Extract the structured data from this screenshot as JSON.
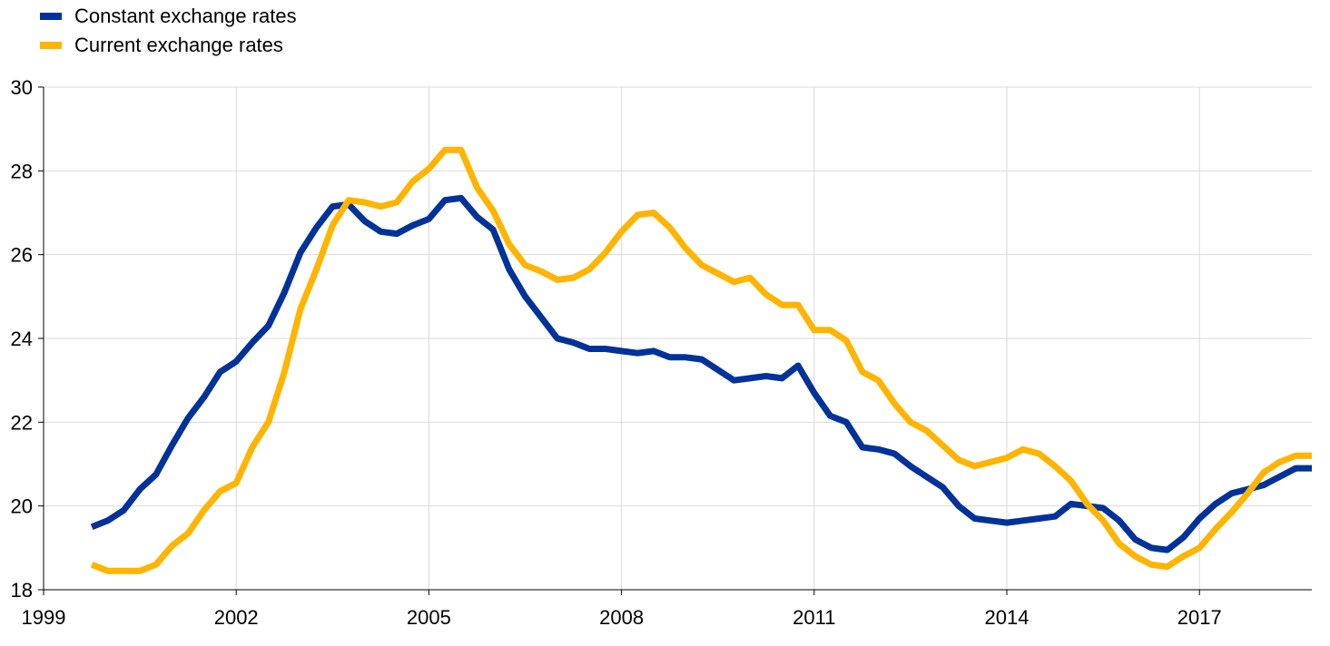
{
  "legend": [
    {
      "label": "Constant exchange rates",
      "color": "#003299"
    },
    {
      "label": "Current exchange rates",
      "color": "#FFB400"
    }
  ],
  "chart_data": {
    "type": "line",
    "title": "",
    "xlabel": "",
    "ylabel": "",
    "xlim": [
      1999,
      2018.75
    ],
    "ylim": [
      18,
      30
    ],
    "x_ticks": [
      1999,
      2002,
      2005,
      2008,
      2011,
      2014,
      2017
    ],
    "y_ticks": [
      18,
      20,
      22,
      24,
      26,
      28,
      30
    ],
    "grid": true,
    "legend_position": "top-left",
    "x": [
      1999.75,
      2000.0,
      2000.25,
      2000.5,
      2000.75,
      2001.0,
      2001.25,
      2001.5,
      2001.75,
      2002.0,
      2002.25,
      2002.5,
      2002.75,
      2003.0,
      2003.25,
      2003.5,
      2003.75,
      2004.0,
      2004.25,
      2004.5,
      2004.75,
      2005.0,
      2005.25,
      2005.5,
      2005.75,
      2006.0,
      2006.25,
      2006.5,
      2006.75,
      2007.0,
      2007.25,
      2007.5,
      2007.75,
      2008.0,
      2008.25,
      2008.5,
      2008.75,
      2009.0,
      2009.25,
      2009.5,
      2009.75,
      2010.0,
      2010.25,
      2010.5,
      2010.75,
      2011.0,
      2011.25,
      2011.5,
      2011.75,
      2012.0,
      2012.25,
      2012.5,
      2012.75,
      2013.0,
      2013.25,
      2013.5,
      2013.75,
      2014.0,
      2014.25,
      2014.5,
      2014.75,
      2015.0,
      2015.25,
      2015.5,
      2015.75,
      2016.0,
      2016.25,
      2016.5,
      2016.75,
      2017.0,
      2017.25,
      2017.5,
      2017.75,
      2018.0,
      2018.25,
      2018.5,
      2018.75
    ],
    "series": [
      {
        "name": "Constant exchange rates",
        "color": "#003299",
        "values": [
          19.5,
          19.65,
          19.9,
          20.4,
          20.75,
          21.45,
          22.1,
          22.6,
          23.2,
          23.45,
          23.9,
          24.3,
          25.1,
          26.05,
          26.65,
          27.15,
          27.2,
          26.8,
          26.55,
          26.5,
          26.7,
          26.85,
          27.3,
          27.35,
          26.9,
          26.6,
          25.65,
          25.0,
          24.5,
          24.0,
          23.9,
          23.75,
          23.75,
          23.7,
          23.65,
          23.7,
          23.55,
          23.55,
          23.5,
          23.25,
          23.0,
          23.05,
          23.1,
          23.05,
          23.35,
          22.7,
          22.15,
          22.0,
          21.4,
          21.35,
          21.25,
          20.95,
          20.7,
          20.45,
          20.0,
          19.7,
          19.65,
          19.6,
          19.65,
          19.7,
          19.75,
          20.05,
          20.0,
          19.95,
          19.65,
          19.2,
          19.0,
          18.95,
          19.25,
          19.7,
          20.05,
          20.3,
          20.4,
          20.5,
          20.7,
          20.9,
          20.9
        ]
      },
      {
        "name": "Current exchange rates",
        "color": "#FFB400",
        "values": [
          18.6,
          18.45,
          18.45,
          18.45,
          18.6,
          19.05,
          19.35,
          19.9,
          20.35,
          20.55,
          21.4,
          22.0,
          23.2,
          24.7,
          25.65,
          26.7,
          27.3,
          27.25,
          27.15,
          27.25,
          27.75,
          28.05,
          28.5,
          28.5,
          27.6,
          27.05,
          26.25,
          25.75,
          25.6,
          25.4,
          25.45,
          25.65,
          26.05,
          26.55,
          26.95,
          27.0,
          26.65,
          26.15,
          25.75,
          25.55,
          25.35,
          25.45,
          25.05,
          24.8,
          24.8,
          24.2,
          24.2,
          23.95,
          23.2,
          23.0,
          22.45,
          22.0,
          21.8,
          21.45,
          21.1,
          20.95,
          21.05,
          21.15,
          21.35,
          21.25,
          20.95,
          20.6,
          20.05,
          19.65,
          19.1,
          18.8,
          18.6,
          18.55,
          18.8,
          19.0,
          19.45,
          19.85,
          20.3,
          20.8,
          21.05,
          21.2,
          21.2
        ]
      }
    ]
  }
}
